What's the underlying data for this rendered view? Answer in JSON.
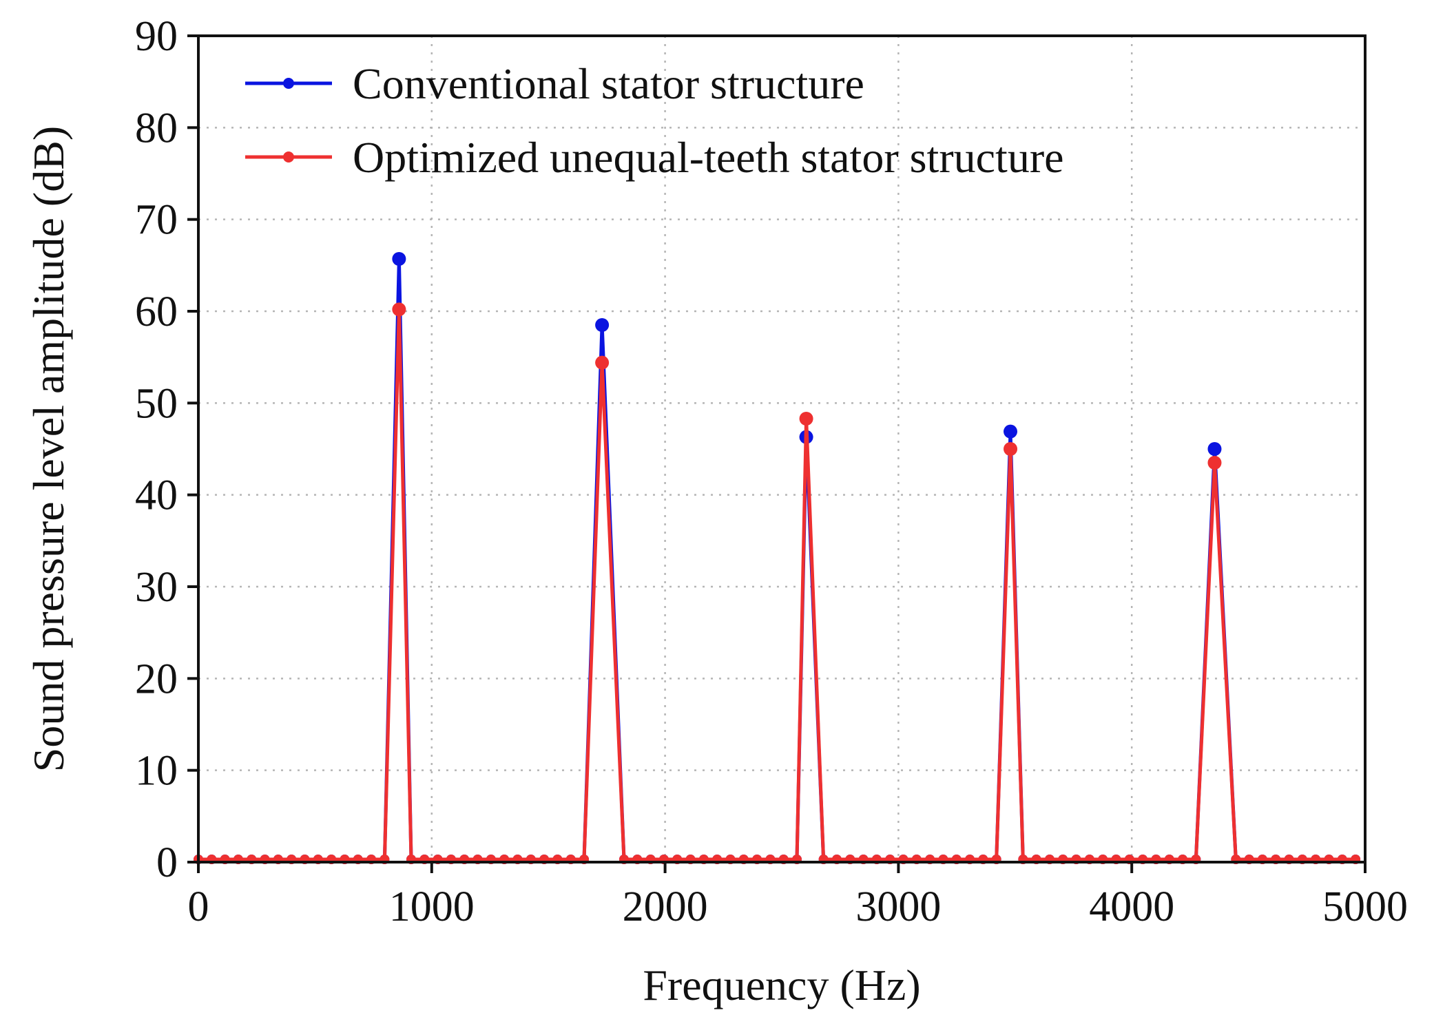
{
  "chart_data": {
    "type": "line",
    "title": "",
    "xlabel": "Frequency (Hz)",
    "ylabel": "Sound pressure level amplitude (dB)",
    "xlim": [
      0,
      5000
    ],
    "ylim": [
      0,
      90
    ],
    "xticks": [
      "0",
      "1000",
      "2000",
      "3000",
      "4000",
      "5000"
    ],
    "yticks": [
      "0",
      "10",
      "20",
      "30",
      "40",
      "50",
      "60",
      "70",
      "80",
      "90"
    ],
    "grid": true,
    "legend_position": "top-left",
    "baseline_value": 0.3,
    "sample_spacing_hz": 57,
    "series": [
      {
        "name": "Conventional stator structure",
        "color": "#0a14e0",
        "peaks": [
          {
            "freq": 860,
            "value": 65.7
          },
          {
            "freq": 1730,
            "value": 58.5
          },
          {
            "freq": 2605,
            "value": 46.3
          },
          {
            "freq": 3480,
            "value": 46.9
          },
          {
            "freq": 4355,
            "value": 45.0
          }
        ]
      },
      {
        "name": "Optimized unequal-teeth stator structure",
        "color": "#ee3030",
        "peaks": [
          {
            "freq": 860,
            "value": 60.2
          },
          {
            "freq": 1730,
            "value": 54.4
          },
          {
            "freq": 2605,
            "value": 48.3
          },
          {
            "freq": 3480,
            "value": 45.0
          },
          {
            "freq": 4355,
            "value": 43.5
          }
        ]
      }
    ]
  }
}
